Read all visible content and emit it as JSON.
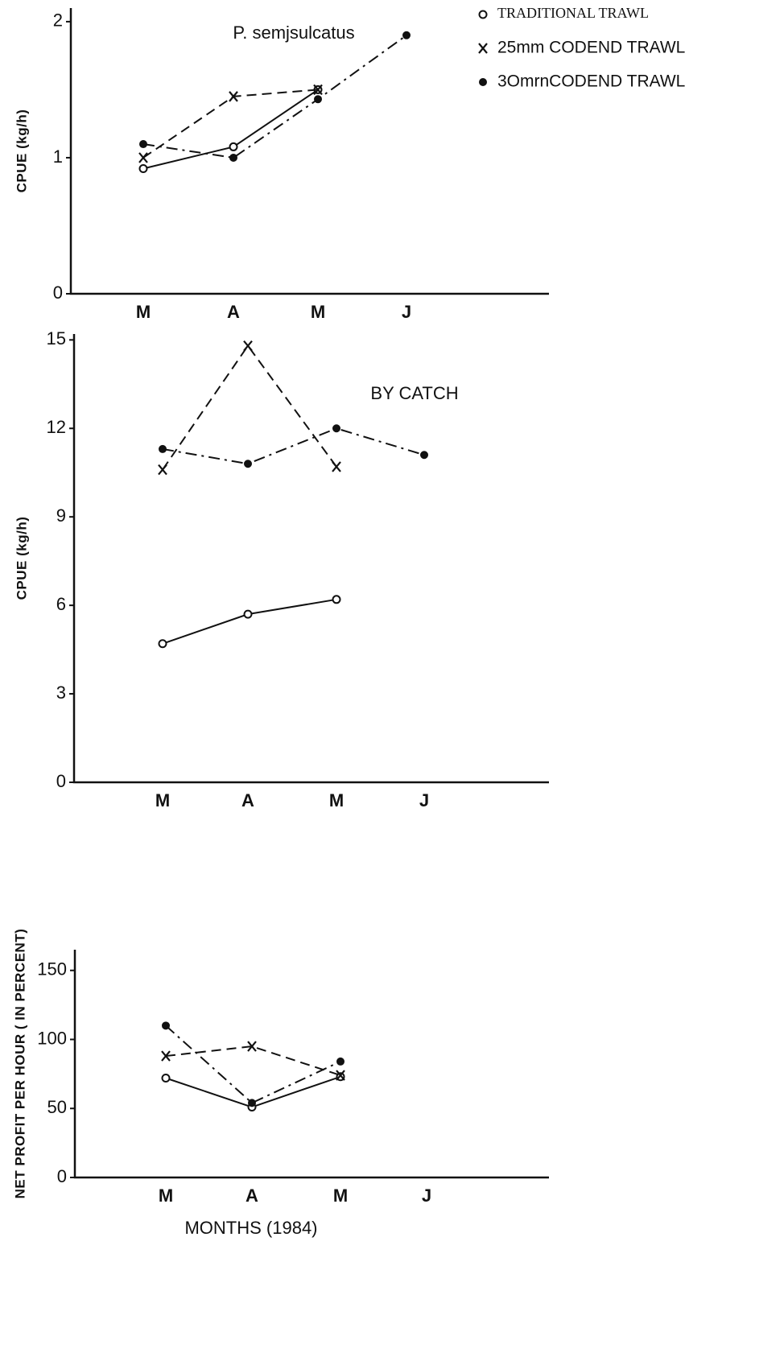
{
  "chart_data": [
    {
      "type": "line",
      "title": "P. semjsulcatus",
      "y_label": "CPUE (kg/h)",
      "categories": [
        "M",
        "A",
        "M",
        "J"
      ],
      "ylim": [
        0,
        2.1
      ],
      "yticks": [
        0,
        1,
        2
      ],
      "series": [
        {
          "name": "TRADITIONAL TRAWL",
          "color": "#111111",
          "marker": "open-circle",
          "dash": "solid",
          "values": [
            0.92,
            1.08,
            1.5,
            null
          ]
        },
        {
          "name": "25mm CODEND TRAWL",
          "color": "#111111",
          "marker": "x",
          "dash": "dashed",
          "values": [
            1.0,
            1.45,
            1.5,
            null
          ]
        },
        {
          "name": "3OmrnCODEND TRAWL",
          "color": "#111111",
          "marker": "dot",
          "dash": "dash-dot",
          "values": [
            1.1,
            1.0,
            1.43,
            1.9
          ]
        }
      ]
    },
    {
      "type": "line",
      "title": "BY CATCH",
      "y_label": "CPUE (kg/h)",
      "categories": [
        "M",
        "A",
        "M",
        "J"
      ],
      "ylim": [
        0,
        15.2
      ],
      "yticks": [
        0,
        3,
        6,
        9,
        12,
        15
      ],
      "series": [
        {
          "color": "#111111",
          "marker": "open-circle",
          "dash": "solid",
          "values": [
            4.7,
            5.7,
            6.2,
            null
          ]
        },
        {
          "color": "#111111",
          "marker": "x",
          "dash": "dashed",
          "values": [
            10.6,
            14.8,
            10.7,
            null
          ]
        },
        {
          "color": "#111111",
          "marker": "dot",
          "dash": "dash-dot",
          "values": [
            11.3,
            10.8,
            12.0,
            11.1
          ]
        }
      ]
    },
    {
      "type": "line",
      "y_label": "NET PROFIT PER HOUR ( IN PERCENT)",
      "x_label": "MONTHS (1984)",
      "categories": [
        "M",
        "A",
        "M",
        "J"
      ],
      "ylim": [
        0,
        165
      ],
      "yticks": [
        0,
        50,
        100,
        150
      ],
      "series": [
        {
          "color": "#111111",
          "marker": "open-circle",
          "dash": "solid",
          "values": [
            72,
            51,
            73,
            null
          ]
        },
        {
          "color": "#111111",
          "marker": "x",
          "dash": "dashed",
          "values": [
            88,
            95,
            74,
            null
          ]
        },
        {
          "color": "#111111",
          "marker": "dot",
          "dash": "dash-dot",
          "values": [
            110,
            54,
            84,
            null
          ]
        }
      ]
    }
  ]
}
